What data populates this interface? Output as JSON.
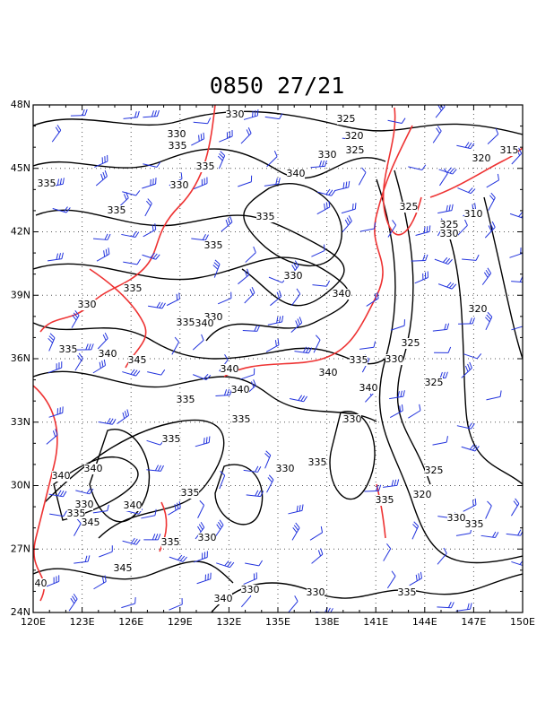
{
  "title": "0850 27/21",
  "lat_labels": [
    "48N",
    "45N",
    "42N",
    "39N",
    "36N",
    "33N",
    "30N",
    "27N",
    "24N"
  ],
  "lon_labels": [
    "120E",
    "123E",
    "126E",
    "129E",
    "132E",
    "135E",
    "138E",
    "141E",
    "144E",
    "147E",
    "150E"
  ],
  "contour_labels": [
    330,
    325,
    330,
    320,
    335,
    330,
    325,
    315,
    320,
    335,
    340,
    335,
    330,
    335,
    325,
    325,
    310,
    335,
    330,
    335,
    330,
    335,
    340,
    330,
    330,
    335,
    340,
    320,
    325,
    335,
    340,
    345,
    335,
    330,
    340,
    340,
    325,
    340,
    340,
    335,
    335,
    330,
    335,
    330,
    335,
    340,
    325,
    340,
    320,
    335,
    340,
    330,
    335,
    335,
    345,
    330,
    335,
    335,
    330,
    345,
    340,
    330,
    330,
    340,
    335
  ]
}
